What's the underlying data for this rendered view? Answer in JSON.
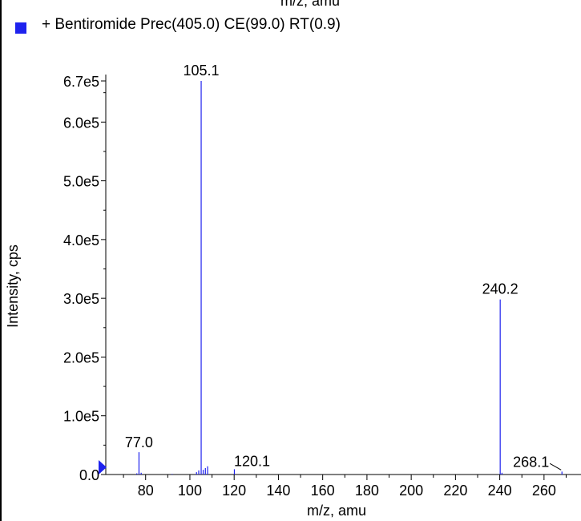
{
  "header": {
    "previous_xlabel": "m/z, amu"
  },
  "legend": {
    "label": "+ Bentiromide Prec(405.0) CE(99.0) RT(0.9)",
    "swatch_color": "#1e22ee"
  },
  "chart_data": {
    "type": "bar",
    "series": [
      {
        "name": "+ Bentiromide Prec(405.0) CE(99.0) RT(0.9)",
        "peaks": [
          {
            "mz": 76.0,
            "intensity": 2000
          },
          {
            "mz": 77.0,
            "intensity": 38000
          },
          {
            "mz": 78.0,
            "intensity": 3000
          },
          {
            "mz": 92.0,
            "intensity": 1000
          },
          {
            "mz": 103.0,
            "intensity": 4000
          },
          {
            "mz": 104.0,
            "intensity": 7000
          },
          {
            "mz": 105.1,
            "intensity": 670000
          },
          {
            "mz": 106.0,
            "intensity": 8000
          },
          {
            "mz": 107.0,
            "intensity": 11000
          },
          {
            "mz": 108.0,
            "intensity": 14000
          },
          {
            "mz": 120.1,
            "intensity": 9000
          },
          {
            "mz": 240.2,
            "intensity": 298000
          },
          {
            "mz": 241.0,
            "intensity": 3000
          },
          {
            "mz": 268.1,
            "intensity": 5000
          }
        ]
      }
    ],
    "peak_labels": [
      {
        "mz": 105.1,
        "intensity": 670000,
        "text": "105.1"
      },
      {
        "mz": 240.2,
        "intensity": 298000,
        "text": "240.2"
      },
      {
        "mz": 77.0,
        "intensity": 38000,
        "text": "77.0"
      },
      {
        "mz": 120.1,
        "intensity": 9000,
        "text": "120.1"
      },
      {
        "mz": 268.1,
        "intensity": 5000,
        "text": "268.1"
      }
    ],
    "xlabel": "m/z, amu",
    "ylabel": "Intensity, cps",
    "xlim": [
      62,
      272
    ],
    "ylim": [
      0,
      678000
    ],
    "x_ticks": [
      80,
      100,
      120,
      140,
      160,
      180,
      200,
      220,
      240,
      260
    ],
    "x_tick_labels": [
      "80",
      "100",
      "120",
      "140",
      "160",
      "180",
      "200",
      "220",
      "240",
      "260"
    ],
    "y_ticks": [
      0,
      100000,
      200000,
      300000,
      400000,
      500000,
      600000,
      670000
    ],
    "y_tick_labels": [
      "0.0",
      "1.0e5",
      "2.0e5",
      "3.0e5",
      "4.0e5",
      "5.0e5",
      "6.0e5",
      "6.7e5"
    ],
    "y_minor_step": 50000,
    "grid": false,
    "line_color": "#1e22ee",
    "marker_color": "#1e22ee"
  }
}
